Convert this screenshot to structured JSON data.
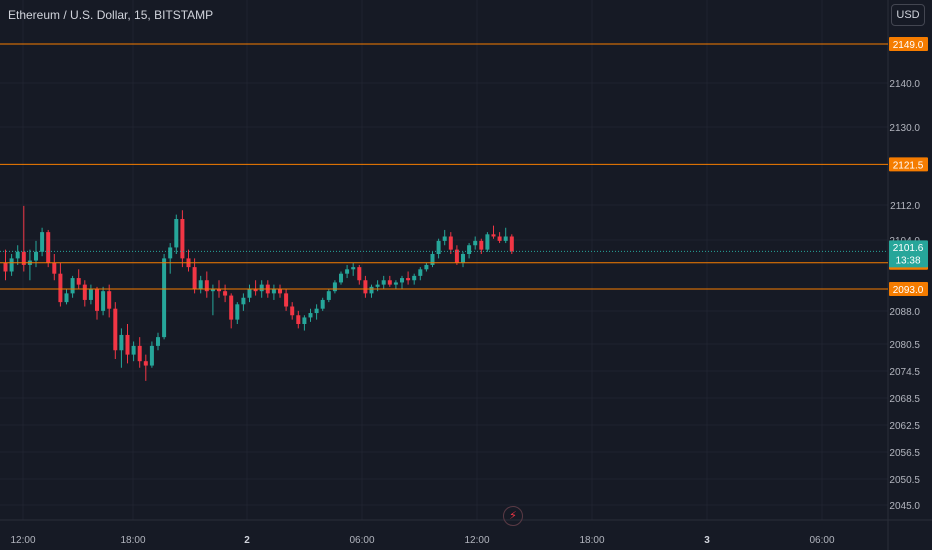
{
  "header": {
    "title": "Ethereum / U.S. Dollar, 15, BITSTAMP",
    "currency": "USD"
  },
  "colors": {
    "background": "#161a25",
    "up": "#26a69a",
    "down": "#f23645",
    "level": "#f57c00",
    "grid": "#1f2330",
    "text": "#b2b5be"
  },
  "icons": {
    "replay": "lightning-icon"
  },
  "chart_data": {
    "type": "candlestick",
    "symbol": "ETH/USD",
    "interval": "15",
    "exchange": "BITSTAMP",
    "ylim": [
      2040.0,
      2152.0
    ],
    "y_ticks": [
      "2140.0",
      "2130.0",
      "2112.0",
      "2104.0",
      "2088.0",
      "2080.5",
      "2074.5",
      "2068.5",
      "2062.5",
      "2056.5",
      "2050.5",
      "2045.0"
    ],
    "x_ticks": [
      "12:00",
      "18:00",
      "2",
      "06:00",
      "12:00",
      "18:00",
      "3",
      "06:00"
    ],
    "levels": [
      {
        "price": "2149.0"
      },
      {
        "price": "2121.5"
      },
      {
        "price": "2099.0"
      },
      {
        "price": "2093.0"
      }
    ],
    "last_price": {
      "price": "2101.6",
      "countdown": "13:38"
    },
    "candles": [
      [
        2099.0,
        2102.0,
        2095.0,
        2097.0
      ],
      [
        2097.0,
        2101.0,
        2096.0,
        2100.0
      ],
      [
        2100.0,
        2103.0,
        2098.5,
        2101.5
      ],
      [
        2101.5,
        2112.0,
        2097.0,
        2098.5
      ],
      [
        2098.5,
        2102.0,
        2095.0,
        2099.5
      ],
      [
        2099.5,
        2104.0,
        2098.0,
        2101.5
      ],
      [
        2101.5,
        2107.0,
        2100.5,
        2106.0
      ],
      [
        2106.0,
        2106.5,
        2098.0,
        2099.0
      ],
      [
        2099.0,
        2101.0,
        2095.0,
        2096.5
      ],
      [
        2096.5,
        2099.0,
        2089.0,
        2090.0
      ],
      [
        2090.0,
        2093.0,
        2089.5,
        2092.0
      ],
      [
        2092.0,
        2096.0,
        2091.0,
        2095.5
      ],
      [
        2095.5,
        2097.5,
        2093.0,
        2094.0
      ],
      [
        2094.0,
        2095.0,
        2089.0,
        2090.5
      ],
      [
        2090.5,
        2094.0,
        2089.5,
        2093.0
      ],
      [
        2093.0,
        2093.5,
        2086.0,
        2088.0
      ],
      [
        2088.0,
        2093.5,
        2087.0,
        2092.5
      ],
      [
        2092.5,
        2094.0,
        2086.5,
        2088.5
      ],
      [
        2088.5,
        2090.0,
        2077.0,
        2079.0
      ],
      [
        2079.0,
        2084.0,
        2075.0,
        2082.5
      ],
      [
        2082.5,
        2085.0,
        2076.0,
        2078.0
      ],
      [
        2078.0,
        2081.0,
        2076.5,
        2080.0
      ],
      [
        2080.0,
        2082.0,
        2075.0,
        2076.5
      ],
      [
        2076.5,
        2078.0,
        2072.0,
        2075.5
      ],
      [
        2075.5,
        2081.0,
        2075.0,
        2080.0
      ],
      [
        2080.0,
        2083.0,
        2079.0,
        2082.0
      ],
      [
        2082.0,
        2101.0,
        2081.5,
        2100.0
      ],
      [
        2100.0,
        2103.5,
        2096.5,
        2102.5
      ],
      [
        2102.5,
        2110.0,
        2101.0,
        2109.0
      ],
      [
        2109.0,
        2111.0,
        2098.0,
        2100.0
      ],
      [
        2100.0,
        2102.0,
        2097.0,
        2098.0
      ],
      [
        2098.0,
        2100.0,
        2092.0,
        2093.0
      ],
      [
        2093.0,
        2096.0,
        2092.0,
        2095.0
      ],
      [
        2095.0,
        2097.0,
        2091.0,
        2092.5
      ],
      [
        2092.5,
        2094.0,
        2087.0,
        2093.0
      ],
      [
        2093.0,
        2095.0,
        2091.0,
        2092.5
      ],
      [
        2092.5,
        2094.0,
        2090.0,
        2091.5
      ],
      [
        2091.5,
        2092.0,
        2084.0,
        2086.0
      ],
      [
        2086.0,
        2090.0,
        2085.0,
        2089.5
      ],
      [
        2089.5,
        2092.0,
        2088.0,
        2091.0
      ],
      [
        2091.0,
        2094.0,
        2090.0,
        2093.0
      ],
      [
        2093.0,
        2095.0,
        2091.5,
        2092.5
      ],
      [
        2092.5,
        2095.0,
        2091.0,
        2094.0
      ],
      [
        2094.0,
        2095.0,
        2091.0,
        2092.0
      ],
      [
        2092.0,
        2094.0,
        2090.5,
        2093.0
      ],
      [
        2093.0,
        2094.0,
        2091.0,
        2092.0
      ],
      [
        2092.0,
        2093.0,
        2088.0,
        2089.0
      ],
      [
        2089.0,
        2090.0,
        2086.0,
        2087.0
      ],
      [
        2087.0,
        2088.0,
        2084.0,
        2085.0
      ],
      [
        2085.0,
        2087.0,
        2083.5,
        2086.5
      ],
      [
        2086.5,
        2088.5,
        2085.5,
        2087.5
      ],
      [
        2087.5,
        2089.5,
        2086.0,
        2088.5
      ],
      [
        2088.5,
        2091.0,
        2088.0,
        2090.5
      ],
      [
        2090.5,
        2093.0,
        2090.0,
        2092.5
      ],
      [
        2092.5,
        2095.0,
        2092.0,
        2094.5
      ],
      [
        2094.5,
        2097.0,
        2094.0,
        2096.5
      ],
      [
        2096.5,
        2098.5,
        2095.5,
        2097.5
      ],
      [
        2097.5,
        2099.0,
        2096.0,
        2098.0
      ],
      [
        2098.0,
        2098.5,
        2094.0,
        2095.0
      ],
      [
        2095.0,
        2096.0,
        2091.0,
        2092.0
      ],
      [
        2092.0,
        2094.0,
        2091.0,
        2093.5
      ],
      [
        2093.5,
        2095.0,
        2092.5,
        2094.0
      ],
      [
        2094.0,
        2096.0,
        2093.0,
        2095.0
      ],
      [
        2095.0,
        2096.0,
        2093.5,
        2094.0
      ],
      [
        2094.0,
        2095.0,
        2093.0,
        2094.5
      ],
      [
        2094.5,
        2096.0,
        2093.0,
        2095.5
      ],
      [
        2095.5,
        2097.0,
        2094.0,
        2095.0
      ],
      [
        2095.0,
        2096.5,
        2094.0,
        2096.0
      ],
      [
        2096.0,
        2098.0,
        2095.0,
        2097.5
      ],
      [
        2097.5,
        2099.0,
        2097.0,
        2098.5
      ],
      [
        2098.5,
        2101.5,
        2098.0,
        2101.0
      ],
      [
        2101.0,
        2104.5,
        2100.0,
        2104.0
      ],
      [
        2104.0,
        2106.5,
        2103.0,
        2105.0
      ],
      [
        2105.0,
        2106.0,
        2101.0,
        2102.0
      ],
      [
        2102.0,
        2103.0,
        2098.5,
        2099.0
      ],
      [
        2099.0,
        2101.5,
        2098.0,
        2101.0
      ],
      [
        2101.0,
        2103.5,
        2100.0,
        2103.0
      ],
      [
        2103.0,
        2105.0,
        2102.0,
        2104.0
      ],
      [
        2104.0,
        2104.5,
        2101.0,
        2102.0
      ],
      [
        2102.0,
        2106.0,
        2101.5,
        2105.5
      ],
      [
        2105.5,
        2107.5,
        2104.5,
        2105.0
      ],
      [
        2105.0,
        2106.0,
        2103.5,
        2104.0
      ],
      [
        2104.0,
        2107.0,
        2103.5,
        2105.0
      ],
      [
        2105.0,
        2105.5,
        2101.0,
        2101.6
      ]
    ]
  }
}
